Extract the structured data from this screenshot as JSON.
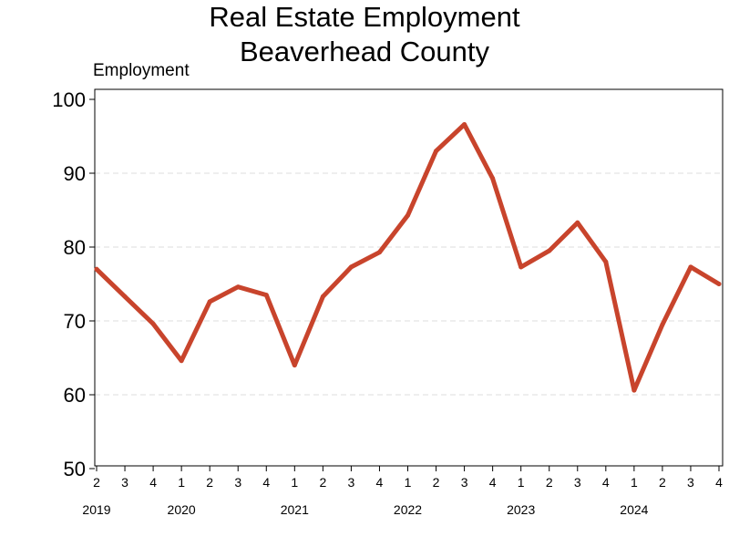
{
  "chart_data": {
    "type": "line",
    "title": "Real Estate Employment",
    "subtitle": "Beaverhead County",
    "ylabel": "Employment",
    "xlabel": "",
    "ylim": [
      50,
      100
    ],
    "yticks": [
      50,
      60,
      70,
      80,
      90,
      100
    ],
    "grid": true,
    "x_quarter_labels": [
      "2",
      "3",
      "4",
      "1",
      "2",
      "3",
      "4",
      "1",
      "2",
      "3",
      "4",
      "1",
      "2",
      "3",
      "4",
      "1",
      "2",
      "3",
      "4",
      "1",
      "2",
      "3",
      "4"
    ],
    "x_year_labels": [
      {
        "label": "2019",
        "index": 0
      },
      {
        "label": "2020",
        "index": 3
      },
      {
        "label": "2021",
        "index": 7
      },
      {
        "label": "2022",
        "index": 11
      },
      {
        "label": "2023",
        "index": 15
      },
      {
        "label": "2024",
        "index": 19
      }
    ],
    "x": [
      "2019 Q2",
      "2019 Q3",
      "2019 Q4",
      "2020 Q1",
      "2020 Q2",
      "2020 Q3",
      "2020 Q4",
      "2021 Q1",
      "2021 Q2",
      "2021 Q3",
      "2021 Q4",
      "2022 Q1",
      "2022 Q2",
      "2022 Q3",
      "2022 Q4",
      "2023 Q1",
      "2023 Q2",
      "2023 Q3",
      "2023 Q4",
      "2024 Q1",
      "2024 Q2",
      "2024 Q3",
      "2024 Q4"
    ],
    "series": [
      {
        "values": [
          77,
          73.3,
          69.6,
          64.6,
          72.6,
          74.6,
          73.5,
          64,
          73.3,
          77.3,
          79.3,
          84.3,
          93,
          96.6,
          89.3,
          77.3,
          79.5,
          83.3,
          78,
          60.6,
          69.5,
          77.3,
          75
        ]
      }
    ],
    "colors": {
      "line": "#C8442C",
      "grid": "#DDDDDD",
      "axis": "#000000"
    }
  }
}
